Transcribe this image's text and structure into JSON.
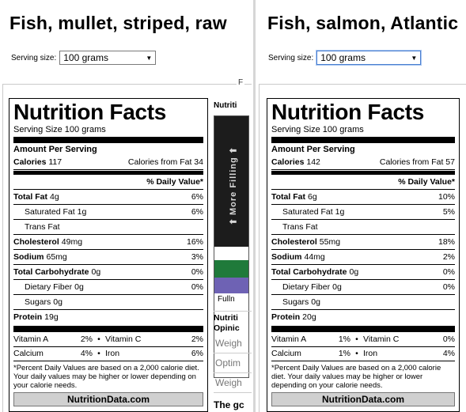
{
  "left": {
    "title": "Fish, mullet, striped, raw",
    "serving_label": "Serving size:",
    "serving_value": "100 grams",
    "frame_letter": "F",
    "nf": {
      "heading": "Nutrition Facts",
      "serving_size": "Serving Size  100 grams",
      "amount_per": "Amount Per Serving",
      "calories_label": "Calories",
      "calories": "117",
      "calories_fat": "Calories from Fat 34",
      "dv_header": "% Daily Value*",
      "rows": [
        {
          "label": "Total Fat",
          "amount": "4g",
          "dv": "6%"
        },
        {
          "label": "Saturated Fat",
          "amount": "1g",
          "dv": "6%"
        },
        {
          "label": "Trans Fat",
          "amount": "",
          "dv": ""
        },
        {
          "label": "Cholesterol",
          "amount": "49mg",
          "dv": "16%"
        },
        {
          "label": "Sodium",
          "amount": "65mg",
          "dv": "3%"
        },
        {
          "label": "Total Carbohydrate",
          "amount": "0g",
          "dv": "0%"
        },
        {
          "label": "Dietary Fiber",
          "amount": "0g",
          "dv": "0%"
        },
        {
          "label": "Sugars",
          "amount": "0g",
          "dv": ""
        },
        {
          "label": "Protein",
          "amount": "19g",
          "dv": ""
        }
      ],
      "vitamins": [
        {
          "a": "Vitamin A",
          "av": "2%",
          "b": "Vitamin C",
          "bv": "2%"
        },
        {
          "a": "Calcium",
          "av": "4%",
          "b": "Iron",
          "bv": "6%"
        }
      ],
      "footnote": "*Percent Daily Values are based on a 2,000 calorie diet. Your daily values may be higher or lower depending on your calorie needs.",
      "brand": "NutritionData.com"
    },
    "side": {
      "heading": "Nutriti",
      "fill_text": "More Filling",
      "fill_label": "Fulln",
      "bottom_heading": "Nutriti Opinic",
      "items": [
        "Weigh",
        "Optim",
        "Weigh"
      ],
      "good": "The gc"
    }
  },
  "right": {
    "title": "Fish, salmon, Atlantic",
    "serving_label": "Serving size:",
    "serving_value": "100 grams",
    "nf": {
      "heading": "Nutrition Facts",
      "serving_size": "Serving Size  100 grams",
      "amount_per": "Amount Per Serving",
      "calories_label": "Calories",
      "calories": "142",
      "calories_fat": "Calories from Fat 57",
      "dv_header": "% Daily Value*",
      "rows": [
        {
          "label": "Total Fat",
          "amount": "6g",
          "dv": "10%"
        },
        {
          "label": "Saturated Fat",
          "amount": "1g",
          "dv": "5%"
        },
        {
          "label": "Trans Fat",
          "amount": "",
          "dv": ""
        },
        {
          "label": "Cholesterol",
          "amount": "55mg",
          "dv": "18%"
        },
        {
          "label": "Sodium",
          "amount": "44mg",
          "dv": "2%"
        },
        {
          "label": "Total Carbohydrate",
          "amount": "0g",
          "dv": "0%"
        },
        {
          "label": "Dietary Fiber",
          "amount": "0g",
          "dv": "0%"
        },
        {
          "label": "Sugars",
          "amount": "0g",
          "dv": ""
        },
        {
          "label": "Protein",
          "amount": "20g",
          "dv": ""
        }
      ],
      "vitamins": [
        {
          "a": "Vitamin A",
          "av": "1%",
          "b": "Vitamin C",
          "bv": "0%"
        },
        {
          "a": "Calcium",
          "av": "1%",
          "b": "Iron",
          "bv": "4%"
        }
      ],
      "footnote": "*Percent Daily Values are based on a 2,000 calorie diet. Your daily values may be higher or lower depending on your calorie needs.",
      "brand": "NutritionData.com"
    }
  }
}
